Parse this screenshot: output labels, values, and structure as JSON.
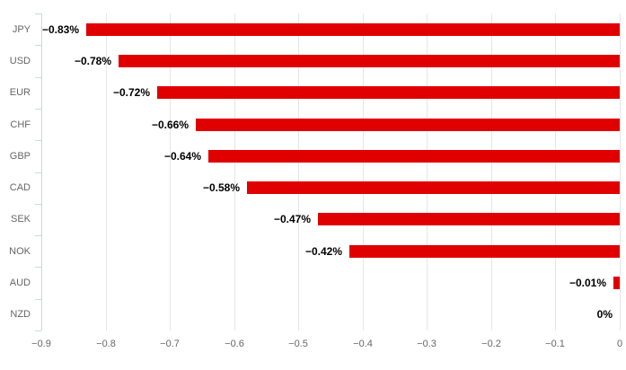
{
  "chart_data": {
    "type": "bar",
    "orientation": "horizontal",
    "title": "",
    "xlabel": "",
    "ylabel": "",
    "categories": [
      "JPY",
      "USD",
      "EUR",
      "CHF",
      "GBP",
      "CAD",
      "SEK",
      "NOK",
      "AUD",
      "NZD"
    ],
    "values": [
      -0.83,
      -0.78,
      -0.72,
      -0.66,
      -0.64,
      -0.58,
      -0.47,
      -0.42,
      -0.01,
      0
    ],
    "data_labels": [
      "−0.83%",
      "−0.78%",
      "−0.72%",
      "−0.66%",
      "−0.64%",
      "−0.58%",
      "−0.47%",
      "−0.42%",
      "−0.01%",
      "0%"
    ],
    "x_ticks": [
      "−0.9",
      "−0.8",
      "−0.7",
      "−0.6",
      "−0.5",
      "−0.4",
      "−0.3",
      "−0.2",
      "−0.1",
      "0"
    ],
    "x_tick_values": [
      -0.9,
      -0.8,
      -0.7,
      -0.6,
      -0.5,
      -0.4,
      -0.3,
      -0.2,
      -0.1,
      0
    ],
    "xlim": [
      -0.9,
      0
    ],
    "grid": true,
    "legend": "none",
    "bar_color": "#e00000",
    "grid_color": "#e6e6e6",
    "axis_color": "#ccd6eb",
    "tick_label_color": "#666666",
    "data_label_color": "#000000"
  }
}
